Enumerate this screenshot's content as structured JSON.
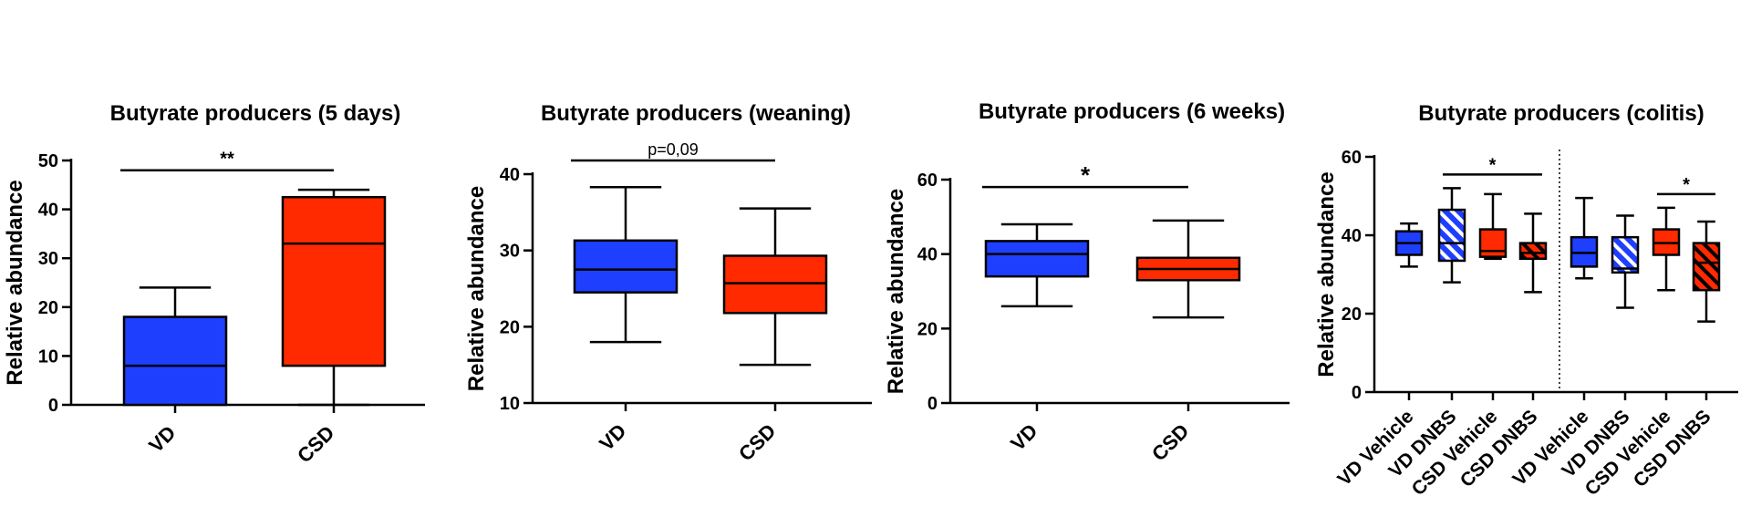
{
  "chart_data": [
    {
      "type": "box",
      "title": "Butyrate producers (5 days)",
      "ylabel": "Relative abundance",
      "xlabel": "",
      "ylim": [
        0,
        50
      ],
      "yticks": [
        0,
        10,
        20,
        30,
        40,
        50
      ],
      "categories": [
        "VD",
        "CSD"
      ],
      "boxes": [
        {
          "category": "VD",
          "min": 0,
          "q1": 0,
          "median": 8,
          "q3": 18,
          "max": 24,
          "color": "#1f3fff",
          "hatch": false
        },
        {
          "category": "CSD",
          "min": 0,
          "q1": 8,
          "median": 33,
          "q3": 42.5,
          "max": 44,
          "color": "#ff2a00",
          "hatch": false
        }
      ],
      "significance": [
        {
          "from": 0,
          "to": 1,
          "label": "**",
          "y": 48
        }
      ]
    },
    {
      "type": "box",
      "title": "Butyrate producers (weaning)",
      "ylabel": "Relative abundance",
      "xlabel": "",
      "ylim": [
        10,
        40
      ],
      "yticks": [
        10,
        20,
        30,
        40
      ],
      "categories": [
        "VD",
        "CSD"
      ],
      "boxes": [
        {
          "category": "VD",
          "min": 18,
          "q1": 24.5,
          "median": 27.5,
          "q3": 31.3,
          "max": 38.3,
          "color": "#1f3fff",
          "hatch": false
        },
        {
          "category": "CSD",
          "min": 15,
          "q1": 21.8,
          "median": 25.7,
          "q3": 29.3,
          "max": 35.5,
          "color": "#ff2a00",
          "hatch": false
        }
      ],
      "significance": [
        {
          "from": 0,
          "to": 1,
          "label": "p=0,09",
          "y": 41.8
        }
      ]
    },
    {
      "type": "box",
      "title": "Butyrate producers (6 weeks)",
      "ylabel": "Relative abundance",
      "xlabel": "",
      "ylim": [
        0,
        60
      ],
      "yticks": [
        0,
        20,
        40,
        60
      ],
      "categories": [
        "VD",
        "CSD"
      ],
      "boxes": [
        {
          "category": "VD",
          "min": 26,
          "q1": 34,
          "median": 40,
          "q3": 43.5,
          "max": 48,
          "color": "#1f3fff",
          "hatch": false
        },
        {
          "category": "CSD",
          "min": 23,
          "q1": 33,
          "median": 36,
          "q3": 39,
          "max": 49,
          "color": "#ff2a00",
          "hatch": false
        }
      ],
      "significance": [
        {
          "from": 0,
          "to": 1,
          "label": "*",
          "y": 58
        }
      ]
    },
    {
      "type": "box",
      "title": "Butyrate producers (colitis)",
      "ylabel": "Relative abundance",
      "xlabel": "",
      "ylim": [
        0,
        60
      ],
      "yticks": [
        0,
        20,
        40,
        60
      ],
      "categories": [
        "VD Vehicle",
        "VD DNBS",
        "CSD Vehicle",
        "CSD DNBS",
        "VD Vehicle",
        "VD DNBS",
        "CSD Vehicle",
        "CSD DNBS"
      ],
      "boxes": [
        {
          "category": "VD Vehicle",
          "min": 32,
          "q1": 35,
          "median": 38,
          "q3": 41,
          "max": 43,
          "color": "#1f3fff",
          "hatch": false
        },
        {
          "category": "VD DNBS",
          "min": 28,
          "q1": 33.5,
          "median": 38,
          "q3": 46.5,
          "max": 52,
          "color": "#1f3fff",
          "hatch": true
        },
        {
          "category": "CSD Vehicle",
          "min": 34,
          "q1": 34.5,
          "median": 36,
          "q3": 41.5,
          "max": 50.5,
          "color": "#ff2a00",
          "hatch": false
        },
        {
          "category": "CSD DNBS",
          "min": 25.5,
          "q1": 34,
          "median": 35.5,
          "q3": 38,
          "max": 45.5,
          "color": "#ff2a00",
          "hatch": true
        },
        {
          "category": "VD Vehicle",
          "min": 29,
          "q1": 32,
          "median": 35.5,
          "q3": 39.5,
          "max": 49.5,
          "color": "#1f3fff",
          "hatch": false
        },
        {
          "category": "VD DNBS",
          "min": 21.5,
          "q1": 30.5,
          "median": 31.5,
          "q3": 39.5,
          "max": 45,
          "color": "#1f3fff",
          "hatch": true
        },
        {
          "category": "CSD Vehicle",
          "min": 26,
          "q1": 35,
          "median": 38,
          "q3": 41.5,
          "max": 47,
          "color": "#ff2a00",
          "hatch": false
        },
        {
          "category": "CSD DNBS",
          "min": 18,
          "q1": 26,
          "median": 33,
          "q3": 38,
          "max": 43.5,
          "color": "#ff2a00",
          "hatch": true
        }
      ],
      "significance": [
        {
          "from": 1,
          "to": 3,
          "label": "*",
          "y": 55.5
        },
        {
          "from": 6,
          "to": 7,
          "label": "*",
          "y": 50.5
        }
      ],
      "separator_after": 3
    }
  ]
}
